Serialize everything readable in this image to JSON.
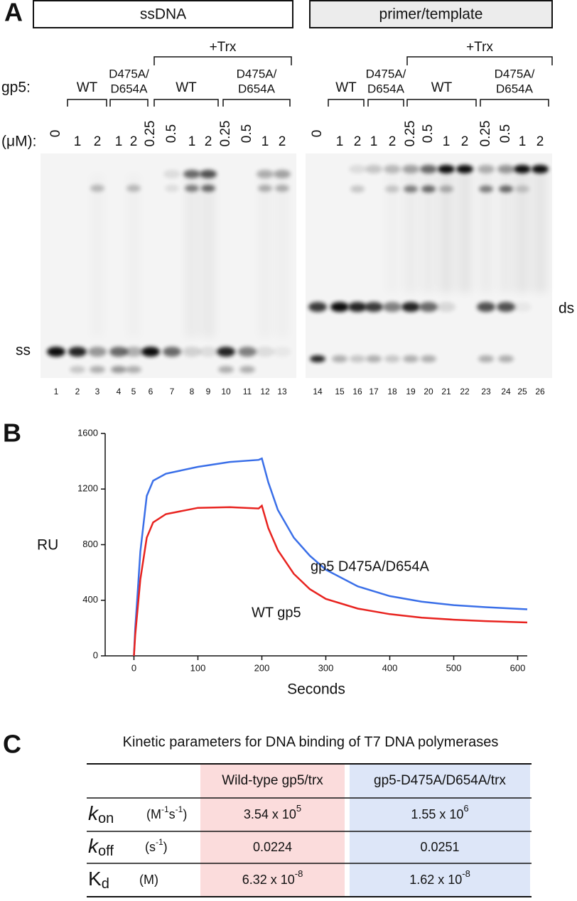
{
  "panel_a": {
    "label": "A",
    "protein_row": "gp5:",
    "concentration_row": "(μM):",
    "trx": "+Trx",
    "wt": "WT",
    "mutant": [
      "D475A/",
      "D654A"
    ],
    "ss": "ss",
    "ds": "ds",
    "gels": [
      {
        "title": "ssDNA",
        "concentrations": [
          0,
          1,
          2,
          1,
          2,
          0.25,
          0.5,
          1,
          2,
          0.25,
          0.5,
          1,
          2
        ],
        "lanes": [
          1,
          2,
          3,
          4,
          5,
          6,
          7,
          8,
          9,
          10,
          11,
          12,
          13
        ]
      },
      {
        "title": "primer/template",
        "concentrations": [
          0,
          1,
          2,
          1,
          2,
          0.25,
          0.5,
          1,
          2,
          0.25,
          0.5,
          1,
          2
        ],
        "lanes": [
          14,
          15,
          16,
          17,
          18,
          19,
          20,
          21,
          22,
          23,
          24,
          25,
          26
        ]
      }
    ]
  },
  "panel_b": {
    "label": "B"
  },
  "chart_data": {
    "type": "line",
    "x_label": "Seconds",
    "y_label": "RU",
    "x": [
      0,
      2,
      5,
      10,
      20,
      30,
      50,
      100,
      150,
      195,
      200,
      210,
      225,
      250,
      275,
      300,
      350,
      400,
      450,
      500,
      550,
      615
    ],
    "series": [
      {
        "name": "gp5 D475A/D654A",
        "color": "#3a6fe8",
        "values": [
          0,
          200,
          400,
          750,
          1150,
          1260,
          1310,
          1360,
          1395,
          1410,
          1420,
          1250,
          1050,
          850,
          720,
          620,
          500,
          430,
          390,
          365,
          350,
          335
        ]
      },
      {
        "name": "WT gp5",
        "color": "#e8231f",
        "values": [
          0,
          150,
          300,
          550,
          850,
          960,
          1020,
          1065,
          1070,
          1060,
          1080,
          920,
          760,
          590,
          480,
          410,
          340,
          300,
          275,
          260,
          250,
          240
        ]
      }
    ],
    "xlim": [
      -45,
      615
    ],
    "ylim": [
      0,
      1600
    ],
    "xticks": [
      0,
      100,
      200,
      300,
      400,
      500,
      600
    ],
    "yticks": [
      0,
      400,
      800,
      1200,
      1600
    ]
  },
  "panel_c": {
    "label": "C",
    "title": "Kinetic parameters for DNA binding of T7 DNA polymerases",
    "columns": [
      "Wild-type gp5/trx",
      "gp5-D475A/D654A/trx"
    ],
    "rows": [
      {
        "symbol": "k",
        "sub": "on",
        "unit": [
          "(M",
          "-1",
          "s",
          "-1",
          ")"
        ],
        "values": [
          {
            "base": "3.54 x 10",
            "exp": "5"
          },
          {
            "base": "1.55 x 10",
            "exp": "6"
          }
        ]
      },
      {
        "symbol": "k",
        "sub": "off",
        "unit": [
          "(s",
          "-1",
          ")"
        ],
        "values": [
          {
            "base": "0.0224"
          },
          {
            "base": "0.0251"
          }
        ]
      },
      {
        "symbol": "K",
        "sub": "d",
        "unit": [
          "(M)"
        ],
        "values": [
          {
            "base": "6.32 x 10",
            "exp": "-8"
          },
          {
            "base": "1.62 x 10",
            "exp": "-8"
          }
        ]
      }
    ]
  }
}
